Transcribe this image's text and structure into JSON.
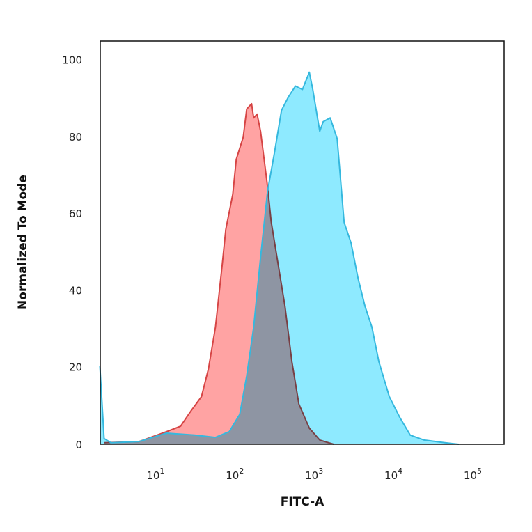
{
  "chart_data": {
    "type": "area",
    "title": "",
    "xlabel": "FITC-A",
    "ylabel": "Normalized To Mode",
    "xscale": "log",
    "xlim": [
      1.78,
      220000
    ],
    "ylim": [
      0,
      105
    ],
    "grid": false,
    "legend": "none",
    "xticks": [
      {
        "value": 10,
        "base": "10",
        "exp": "1"
      },
      {
        "value": 100,
        "base": "10",
        "exp": "2"
      },
      {
        "value": 1000,
        "base": "10",
        "exp": "3"
      },
      {
        "value": 10000,
        "base": "10",
        "exp": "4"
      },
      {
        "value": 100000,
        "base": "10",
        "exp": "5"
      }
    ],
    "yticks": [
      {
        "value": 0,
        "label": "0"
      },
      {
        "value": 20,
        "label": "20"
      },
      {
        "value": 40,
        "label": "40"
      },
      {
        "value": 60,
        "label": "60"
      },
      {
        "value": 80,
        "label": "80"
      },
      {
        "value": 100,
        "label": "100"
      }
    ],
    "series": [
      {
        "color_fill": "#ffa3a3",
        "color_line": "#d64545",
        "x": [
          2.0,
          5.5,
          12.2,
          18.3,
          24.8,
          33.6,
          41.1,
          50.4,
          61.5,
          68.1,
          83.4,
          92.2,
          113,
          125,
          144,
          153,
          169,
          187,
          207,
          229,
          254,
          310,
          379,
          464,
          568,
          769,
          1042,
          1560
        ],
        "y": [
          0.4,
          0.7,
          3.3,
          4.7,
          8.7,
          12.4,
          19.6,
          30.5,
          46.9,
          56.0,
          65.1,
          74.2,
          80,
          87.3,
          88.7,
          85,
          86,
          81.5,
          74.2,
          67,
          58,
          47,
          36,
          21.5,
          10.5,
          4.2,
          1.1,
          0
        ]
      },
      {
        "color_fill": "#8eeaff",
        "color_line": "#35b8de",
        "x": [
          1.76,
          1.99,
          2.43,
          5.5,
          12.2,
          27.5,
          50.4,
          75.4,
          102,
          125,
          153,
          187,
          229,
          280,
          343,
          420,
          514,
          629,
          769,
          851,
          1042,
          1151,
          1409,
          1725,
          2113,
          2585,
          3162,
          3870,
          4735,
          5795,
          7850,
          10620,
          14390,
          21540,
          39400,
          59100
        ],
        "y": [
          20.5,
          1.5,
          0.4,
          0.7,
          2.9,
          2.4,
          1.8,
          3.3,
          7.8,
          17.8,
          30.5,
          48.7,
          66,
          76,
          87,
          90.5,
          93.3,
          92.4,
          96.9,
          92.4,
          81.5,
          84,
          85,
          79.6,
          57.8,
          52.4,
          43.3,
          36,
          30.5,
          21.5,
          12.4,
          7,
          2.4,
          1.1,
          0.4,
          0
        ]
      }
    ]
  }
}
